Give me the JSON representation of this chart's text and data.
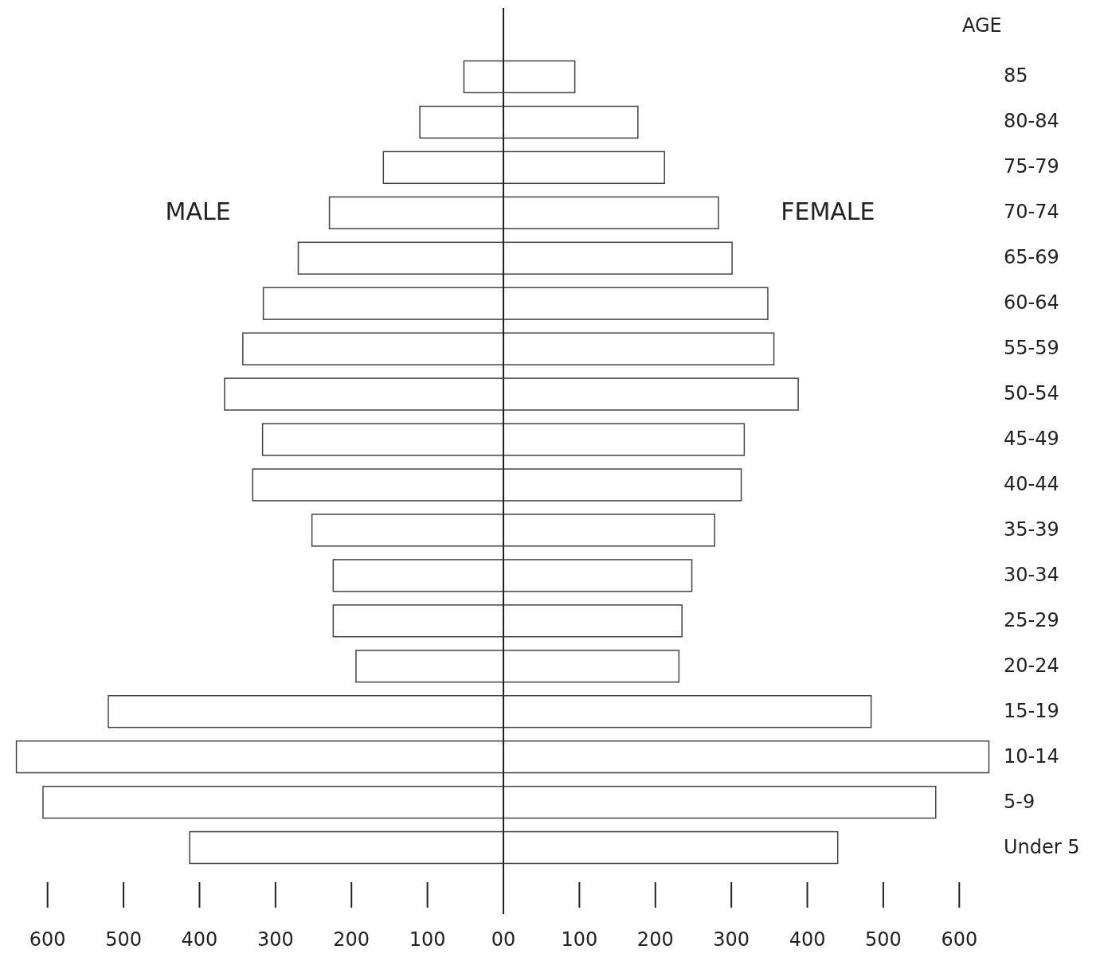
{
  "chart_data": {
    "type": "bar",
    "orientation": "horizontal",
    "stacked": true,
    "ylabel": "AGE",
    "categories": [
      "85",
      "80-84",
      "75-79",
      "70-74",
      "65-69",
      "60-64",
      "55-59",
      "50-54",
      "45-49",
      "40-44",
      "35-39",
      "30-34",
      "25-29",
      "20-24",
      "15-19",
      "10-14",
      "5-9",
      "Under 5"
    ],
    "series": [
      {
        "name": "MALE",
        "color": "#ffffff",
        "values": [
          -52,
          -110,
          -158,
          -229,
          -270,
          -316,
          -343,
          -367,
          -317,
          -330,
          -252,
          -224,
          -224,
          -194,
          -520,
          -641,
          -606,
          -413
        ]
      },
      {
        "name": "FEMALE",
        "color": "#ffffff",
        "values": [
          94,
          177,
          212,
          283,
          301,
          348,
          356,
          388,
          317,
          313,
          278,
          248,
          235,
          231,
          484,
          639,
          569,
          440
        ]
      }
    ],
    "xlim": [
      -650,
      650
    ],
    "xticks": [
      {
        "value": -600,
        "label": "600"
      },
      {
        "value": -500,
        "label": "500"
      },
      {
        "value": -400,
        "label": "400"
      },
      {
        "value": -300,
        "label": "300"
      },
      {
        "value": -200,
        "label": "200"
      },
      {
        "value": -100,
        "label": "100"
      },
      {
        "value": 0,
        "label": "00"
      },
      {
        "value": 100,
        "label": "100"
      },
      {
        "value": 200,
        "label": "200"
      },
      {
        "value": 300,
        "label": "300"
      },
      {
        "value": 400,
        "label": "400"
      },
      {
        "value": 500,
        "label": "500"
      },
      {
        "value": 600,
        "label": "600"
      }
    ]
  }
}
